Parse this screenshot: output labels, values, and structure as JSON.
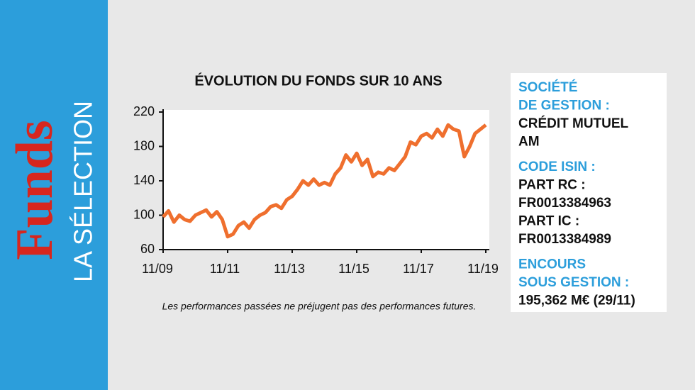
{
  "sidebar": {
    "brand": "Funds",
    "subtitle": "LA SÉLECTION"
  },
  "chart_data": {
    "type": "line",
    "title": "ÉVOLUTION DU FONDS SUR 10 ANS",
    "categories": [
      "11/09",
      null,
      null,
      null,
      null,
      null,
      null,
      null,
      null,
      null,
      null,
      null,
      "11/11",
      null,
      null,
      null,
      null,
      null,
      null,
      null,
      null,
      null,
      null,
      null,
      "11/13",
      null,
      null,
      null,
      null,
      null,
      null,
      null,
      null,
      null,
      null,
      null,
      "11/15",
      null,
      null,
      null,
      null,
      null,
      null,
      null,
      null,
      null,
      null,
      null,
      "11/17",
      null,
      null,
      null,
      null,
      null,
      null,
      null,
      null,
      null,
      null,
      null,
      "11/19"
    ],
    "values": [
      98,
      105,
      92,
      100,
      95,
      93,
      100,
      103,
      106,
      98,
      104,
      95,
      75,
      78,
      88,
      92,
      85,
      95,
      100,
      103,
      110,
      112,
      108,
      118,
      122,
      130,
      140,
      135,
      142,
      135,
      138,
      135,
      148,
      155,
      170,
      162,
      172,
      158,
      165,
      145,
      150,
      148,
      155,
      152,
      160,
      168,
      185,
      182,
      192,
      195,
      190,
      200,
      192,
      205,
      200,
      198,
      168,
      180,
      195,
      200,
      205
    ],
    "color": "#ef6f2e",
    "ylim": [
      60,
      220
    ],
    "yticks": [
      60,
      100,
      140,
      180,
      220
    ],
    "footnote": "Les performances passées ne préjugent pas des performances futures."
  },
  "info": [
    {
      "heading": [
        "SOCIÉTÉ",
        "DE GESTION :"
      ],
      "text": [
        "CRÉDIT MUTUEL",
        "AM"
      ]
    },
    {
      "heading": [
        "CODE ISIN :"
      ],
      "text": [
        "PART RC :",
        "FR0013384963",
        "PART IC :",
        "FR0013384989"
      ]
    },
    {
      "heading": [
        "ENCOURS",
        "SOUS GESTION :"
      ],
      "text": [
        "195,362 M€ (29/11)"
      ]
    }
  ]
}
